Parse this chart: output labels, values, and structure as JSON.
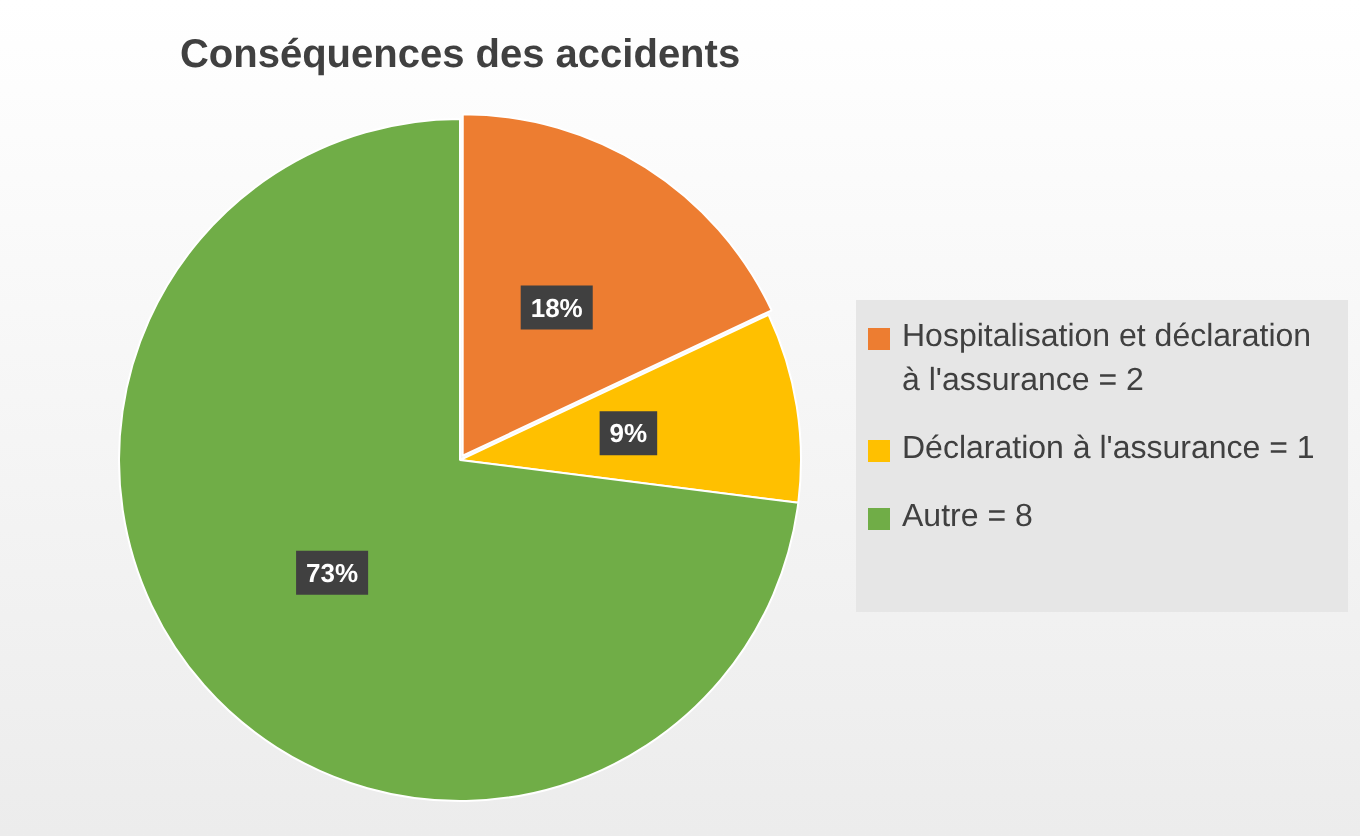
{
  "chart_data": {
    "type": "pie",
    "title": "Conséquences des accidents",
    "categories": [
      "Hospitalisation et déclaration à l'assurance = 2",
      "Déclaration à l'assurance = 1",
      "Autre = 8"
    ],
    "values": [
      18,
      9,
      73
    ],
    "colors": [
      "#ed7d31",
      "#ffc000",
      "#70ad47"
    ],
    "value_labels": [
      "18%",
      "9%",
      "73%"
    ],
    "legend": "right"
  }
}
